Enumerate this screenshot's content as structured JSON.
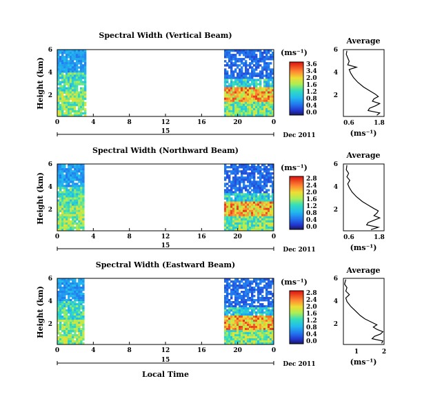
{
  "chart_data": [
    {
      "type": "heatmap",
      "title": "Spectral Width (Vertical Beam)",
      "ylabel": "Height (km)",
      "x_ticks": [
        "0",
        "4",
        "8",
        "12",
        "16",
        "20",
        "0"
      ],
      "date_mid": "15",
      "date_label": "Dec 2011",
      "y_ticks": [
        "2",
        "4",
        "6"
      ],
      "xlim_hours": [
        0,
        24
      ],
      "ylim_km": [
        0.3,
        6
      ],
      "data_coverage_hours": [
        [
          0,
          3.2
        ],
        [
          18.5,
          24
        ]
      ],
      "colorbar": {
        "unit": "(ms⁻¹)",
        "labels": [
          "3.6",
          "3.4",
          "2.0",
          "1.6",
          "1.2",
          "0.8",
          "0.4",
          "0.0"
        ],
        "range": [
          0,
          3.6
        ]
      },
      "profile": {
        "title": "Average",
        "xlabel": "(ms⁻¹)",
        "x_ticks": [
          "0.6",
          "1.8"
        ],
        "y_ticks": [
          "2",
          "4",
          "6"
        ],
        "xlim": [
          0.5,
          1.9
        ],
        "ylim": [
          0.3,
          6
        ],
        "height_km": [
          0.4,
          0.6,
          0.8,
          1.0,
          1.2,
          1.4,
          1.6,
          1.8,
          2.0,
          2.2,
          2.5,
          2.8,
          3.2,
          3.6,
          4.0,
          4.3,
          4.5,
          4.7,
          5.0,
          5.3,
          5.6,
          5.9
        ],
        "width": [
          1.65,
          1.75,
          1.35,
          1.4,
          1.6,
          1.75,
          1.5,
          1.55,
          1.7,
          1.6,
          1.4,
          1.2,
          1.0,
          0.85,
          0.75,
          0.7,
          0.95,
          0.65,
          0.7,
          0.65,
          0.6,
          0.62
        ]
      }
    },
    {
      "type": "heatmap",
      "title": "Spectral Width (Northward Beam)",
      "ylabel": "Height (km)",
      "x_ticks": [
        "0",
        "4",
        "8",
        "12",
        "16",
        "20",
        "0"
      ],
      "date_mid": "15",
      "date_label": "Dec 2011",
      "y_ticks": [
        "2",
        "4",
        "6"
      ],
      "xlim_hours": [
        0,
        24
      ],
      "ylim_km": [
        0.3,
        6
      ],
      "data_coverage_hours": [
        [
          0,
          3.0
        ],
        [
          18.5,
          24
        ]
      ],
      "colorbar": {
        "unit": "(ms⁻¹)",
        "labels": [
          "2.8",
          "2.4",
          "2.0",
          "1.6",
          "1.2",
          "0.8",
          "0.4",
          "0.0"
        ],
        "range": [
          0,
          2.8
        ]
      },
      "profile": {
        "title": "Average",
        "xlabel": "(ms⁻¹)",
        "x_ticks": [
          "0.6",
          "1.8"
        ],
        "y_ticks": [
          "2",
          "4",
          "6"
        ],
        "xlim": [
          0.5,
          1.9
        ],
        "ylim": [
          0.3,
          6
        ],
        "height_km": [
          0.4,
          0.6,
          0.8,
          1.0,
          1.2,
          1.4,
          1.6,
          1.8,
          2.0,
          2.2,
          2.5,
          2.8,
          3.2,
          3.6,
          4.0,
          4.3,
          4.6,
          4.9,
          5.2,
          5.5,
          5.9
        ],
        "width": [
          1.45,
          1.7,
          1.3,
          1.35,
          1.55,
          1.75,
          1.55,
          1.65,
          1.7,
          1.55,
          1.35,
          1.15,
          0.95,
          0.8,
          0.7,
          0.65,
          0.72,
          0.62,
          0.68,
          0.6,
          0.62
        ]
      }
    },
    {
      "type": "heatmap",
      "title": "Spectral Width (Eastward Beam)",
      "ylabel": "Height (km)",
      "xlabel": "Local Time",
      "x_ticks": [
        "0",
        "4",
        "8",
        "12",
        "16",
        "20",
        "0"
      ],
      "date_mid": "15",
      "date_label": "Dec 2011",
      "y_ticks": [
        "2",
        "4",
        "6"
      ],
      "xlim_hours": [
        0,
        24
      ],
      "ylim_km": [
        0.3,
        6
      ],
      "data_coverage_hours": [
        [
          0,
          3.0
        ],
        [
          18.5,
          24
        ]
      ],
      "colorbar": {
        "unit": "(ms⁻¹)",
        "labels": [
          "2.8",
          "2.4",
          "2.0",
          "1.6",
          "1.2",
          "0.8",
          "0.4",
          "0.0"
        ],
        "range": [
          0,
          2.8
        ]
      },
      "profile": {
        "title": "Average",
        "xlabel": "(ms⁻¹)",
        "x_ticks": [
          "1",
          "2"
        ],
        "y_ticks": [
          "2",
          "4",
          "6"
        ],
        "xlim": [
          0.3,
          2.0
        ],
        "ylim": [
          0.3,
          6
        ],
        "height_km": [
          0.4,
          0.6,
          0.8,
          1.0,
          1.2,
          1.4,
          1.6,
          1.8,
          2.0,
          2.2,
          2.5,
          2.8,
          3.2,
          3.6,
          4.0,
          4.3,
          4.6,
          4.9,
          5.2,
          5.5,
          5.9
        ],
        "width": [
          1.9,
          1.95,
          1.5,
          1.6,
          1.85,
          1.95,
          1.7,
          1.55,
          1.7,
          1.5,
          1.2,
          1.0,
          0.8,
          0.6,
          0.45,
          0.4,
          0.55,
          0.4,
          0.45,
          0.35,
          0.4
        ]
      }
    }
  ]
}
